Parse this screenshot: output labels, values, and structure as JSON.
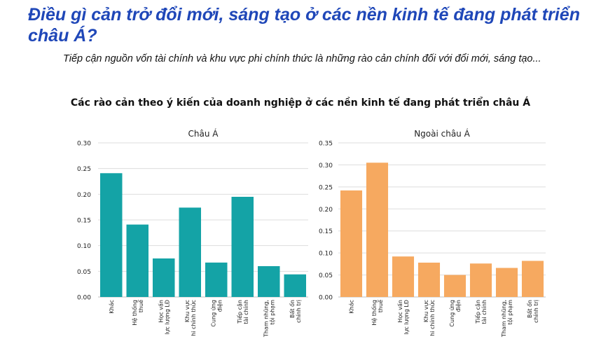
{
  "slide": {
    "title": "Điều gì cản trở đổi mới, sáng tạo ở các nền kinh tế đang phát triển châu Á?",
    "subtitle": "Tiếp cận nguồn vốn tài chính và khu vực phi chính thức là những rào cản chính đối với đổi mới, sáng tạo...",
    "chart_heading": "Các rào cản theo ý kiến của doanh nghiệp ở các nền kinh tế đang phát triển châu Á"
  },
  "chart_data": [
    {
      "type": "bar",
      "title": "Châu Á",
      "color": "#14a3a6",
      "categories": [
        [
          "Khác"
        ],
        [
          "Hệ thống",
          "thuế"
        ],
        [
          "Học vấn",
          "lực lượng LĐ"
        ],
        [
          "Khu vực",
          "hi chính thức"
        ],
        [
          "Cung ứng",
          "điện"
        ],
        [
          "Tiếp cận",
          "tài chính"
        ],
        [
          "Tham nhũng,",
          "tội phạm"
        ],
        [
          "Bất ổn",
          "chính trị"
        ]
      ],
      "values": [
        0.241,
        0.141,
        0.075,
        0.174,
        0.067,
        0.195,
        0.06,
        0.044
      ],
      "ylim": [
        0,
        0.3
      ],
      "yticks": [
        "0.00",
        "0.05",
        "0.10",
        "0.15",
        "0.20",
        "0.25",
        "0.30"
      ],
      "grid": true
    },
    {
      "type": "bar",
      "title": "Ngoài châu Á",
      "color": "#f6a960",
      "categories": [
        [
          "Khác"
        ],
        [
          "Hệ thống",
          "thuế"
        ],
        [
          "Học vấn",
          "lực lượng LĐ"
        ],
        [
          "Khu vực",
          "hi chính thức"
        ],
        [
          "Cung ứng",
          "điện"
        ],
        [
          "Tiếp cận",
          "tài chính"
        ],
        [
          "Tham nhũng,",
          "tội phạm"
        ],
        [
          "Bất ổn",
          "chính trị"
        ]
      ],
      "values": [
        0.242,
        0.305,
        0.092,
        0.078,
        0.05,
        0.076,
        0.066,
        0.082
      ],
      "ylim": [
        0,
        0.35
      ],
      "yticks": [
        "0.00",
        "0.05",
        "0.10",
        "0.15",
        "0.20",
        "0.25",
        "0.30",
        "0.35"
      ],
      "grid": true
    }
  ]
}
